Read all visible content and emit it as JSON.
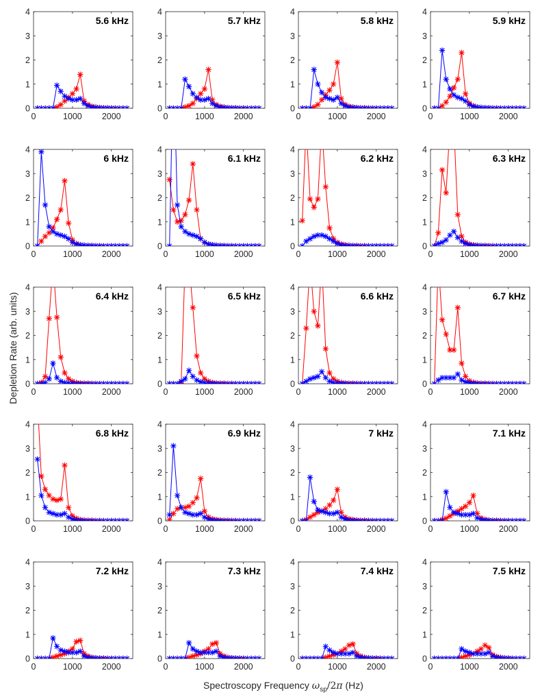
{
  "figure": {
    "ylabel": "Depletion Rate (arb. units)",
    "xlabel_prefix": "Spectroscopy Frequency ",
    "xlabel_suffix": " (Hz)",
    "x_ticks": [
      "0",
      "1000",
      "2000"
    ],
    "y_ticks": [
      "0",
      "1",
      "2",
      "3",
      "4"
    ]
  },
  "chart_data": {
    "type": "line",
    "grid": false,
    "xlim": [
      0,
      2550
    ],
    "ylim": [
      0,
      4
    ],
    "xlabel": "Spectroscopy Frequency ω_sp/2π (Hz)",
    "ylabel": "Depletion Rate (arb. units)",
    "colors": {
      "red": "#ff0000",
      "blue": "#0000ff",
      "axis": "#262626"
    },
    "marker": "asterisk",
    "x": [
      100,
      200,
      300,
      400,
      500,
      600,
      700,
      800,
      900,
      1000,
      1100,
      1200,
      1300,
      1400,
      1500,
      1600,
      1700,
      1800,
      1900,
      2000,
      2100,
      2200,
      2300,
      2400
    ],
    "panels": [
      {
        "title": "5.6 kHz",
        "red": [
          0,
          0,
          0,
          0,
          0,
          0.05,
          0.15,
          0.3,
          0.45,
          0.6,
          0.8,
          1.4,
          0.3,
          0.15,
          0.08,
          0.05,
          0.03,
          0.02,
          0.02,
          0.01,
          0.01,
          0,
          0,
          0
        ],
        "blue": [
          0,
          0,
          0,
          0,
          0,
          0.95,
          0.7,
          0.5,
          0.4,
          0.35,
          0.35,
          0.4,
          0.2,
          0.1,
          0.05,
          0.03,
          0.02,
          0.01,
          0.01,
          0,
          0,
          0,
          0,
          0
        ]
      },
      {
        "title": "5.7 kHz",
        "red": [
          0,
          0,
          0,
          0,
          0.05,
          0.1,
          0.2,
          0.4,
          0.6,
          0.8,
          1.6,
          0.35,
          0.15,
          0.08,
          0.05,
          0.03,
          0.02,
          0.02,
          0.01,
          0.01,
          0,
          0,
          0,
          0
        ],
        "blue": [
          0,
          0,
          0,
          0,
          1.2,
          0.9,
          0.6,
          0.45,
          0.35,
          0.35,
          0.4,
          0.2,
          0.1,
          0.05,
          0.03,
          0.02,
          0.01,
          0.01,
          0,
          0,
          0,
          0,
          0,
          0
        ]
      },
      {
        "title": "5.8 kHz",
        "red": [
          0,
          0,
          0,
          0.05,
          0.15,
          0.35,
          0.55,
          0.75,
          1.0,
          1.9,
          0.4,
          0.15,
          0.08,
          0.05,
          0.03,
          0.02,
          0.02,
          0.01,
          0.01,
          0,
          0,
          0,
          0,
          0
        ],
        "blue": [
          0,
          0,
          0,
          1.6,
          1.0,
          0.65,
          0.45,
          0.4,
          0.35,
          0.45,
          0.2,
          0.1,
          0.05,
          0.03,
          0.02,
          0.01,
          0.01,
          0,
          0,
          0,
          0,
          0,
          0,
          0
        ]
      },
      {
        "title": "5.9 kHz",
        "red": [
          0,
          0,
          0.1,
          0.25,
          0.5,
          0.85,
          1.2,
          2.3,
          0.6,
          0.2,
          0.1,
          0.05,
          0.03,
          0.02,
          0.02,
          0.01,
          0.01,
          0,
          0,
          0,
          0,
          0,
          0,
          0
        ],
        "blue": [
          0,
          0,
          2.4,
          1.2,
          0.8,
          0.55,
          0.45,
          0.4,
          0.3,
          0.15,
          0.08,
          0.05,
          0.03,
          0.02,
          0.01,
          0.01,
          0,
          0,
          0,
          0,
          0,
          0,
          0,
          0
        ]
      },
      {
        "title": "6 kHz",
        "red": [
          0,
          0.2,
          0.4,
          0.55,
          0.75,
          1.1,
          1.5,
          2.7,
          0.95,
          0.25,
          0.1,
          0.05,
          0.03,
          0.02,
          0.02,
          0.01,
          0.01,
          0,
          0,
          0,
          0,
          0,
          0,
          0
        ],
        "blue": [
          0,
          3.9,
          1.7,
          0.8,
          0.6,
          0.5,
          0.45,
          0.4,
          0.3,
          0.15,
          0.08,
          0.05,
          0.03,
          0.02,
          0.01,
          0.01,
          0,
          0,
          0,
          0,
          0,
          0,
          0,
          0
        ]
      },
      {
        "title": "6.1 kHz",
        "red": [
          2.75,
          1.5,
          1.0,
          1.05,
          1.3,
          1.9,
          3.4,
          1.5,
          0.3,
          0.15,
          0.08,
          0.05,
          0.03,
          0.02,
          0.02,
          0.01,
          0.01,
          0,
          0,
          0,
          0,
          0,
          0,
          0
        ],
        "blue": [
          0,
          8.0,
          1.7,
          0.8,
          0.6,
          0.5,
          0.45,
          0.4,
          0.3,
          0.15,
          0.08,
          0.05,
          0.03,
          0.02,
          0.01,
          0.01,
          0,
          0,
          0,
          0,
          0,
          0,
          0,
          0
        ]
      },
      {
        "title": "6.2 kHz",
        "red": [
          1.05,
          5.0,
          1.95,
          1.6,
          1.95,
          5.0,
          2.45,
          0.75,
          0.3,
          0.15,
          0.08,
          0.05,
          0.03,
          0.02,
          0.02,
          0.01,
          0.01,
          0,
          0,
          0,
          0,
          0,
          0,
          0
        ],
        "blue": [
          0,
          0.2,
          0.3,
          0.4,
          0.45,
          0.45,
          0.4,
          0.3,
          0.2,
          0.1,
          0.05,
          0.03,
          0.02,
          0.01,
          0,
          0,
          0,
          0,
          0,
          0,
          0,
          0,
          0,
          0
        ]
      },
      {
        "title": "6.3 kHz",
        "red": [
          0,
          0.55,
          3.15,
          2.2,
          5.0,
          5.0,
          1.3,
          0.4,
          0.15,
          0.08,
          0.05,
          0.03,
          0.02,
          0.02,
          0.01,
          0.01,
          0,
          0,
          0,
          0,
          0,
          0,
          0,
          0
        ],
        "blue": [
          0,
          0.1,
          0.15,
          0.25,
          0.45,
          0.6,
          0.35,
          0.2,
          0.1,
          0.05,
          0.03,
          0.02,
          0.01,
          0,
          0,
          0,
          0,
          0,
          0,
          0,
          0,
          0,
          0,
          0
        ]
      },
      {
        "title": "6.4 kHz",
        "red": [
          0,
          0.05,
          0.3,
          2.7,
          5.0,
          2.75,
          1.1,
          0.45,
          0.2,
          0.1,
          0.05,
          0.03,
          0.02,
          0.02,
          0.01,
          0.01,
          0,
          0,
          0,
          0,
          0,
          0,
          0,
          0
        ],
        "blue": [
          0,
          0,
          0.05,
          0.2,
          0.85,
          0.25,
          0.1,
          0.05,
          0.03,
          0.02,
          0.01,
          0,
          0,
          0,
          0,
          0,
          0,
          0,
          0,
          0,
          0,
          0,
          0,
          0
        ]
      },
      {
        "title": "6.5 kHz",
        "red": [
          0,
          0,
          0,
          0.05,
          5.0,
          5.0,
          3.15,
          1.15,
          0.45,
          0.2,
          0.1,
          0.05,
          0.03,
          0.02,
          0.02,
          0.01,
          0.01,
          0,
          0,
          0,
          0,
          0,
          0,
          0
        ],
        "blue": [
          0,
          0,
          0,
          0.1,
          0.2,
          0.55,
          0.3,
          0.15,
          0.08,
          0.05,
          0.03,
          0.02,
          0.01,
          0,
          0,
          0,
          0,
          0,
          0,
          0,
          0,
          0,
          0,
          0
        ]
      },
      {
        "title": "6.6 kHz",
        "red": [
          0,
          2.3,
          5.0,
          3.0,
          2.4,
          5.0,
          1.45,
          0.45,
          0.2,
          0.1,
          0.05,
          0.03,
          0.02,
          0.02,
          0.01,
          0.01,
          0,
          0,
          0,
          0,
          0,
          0,
          0,
          0
        ],
        "blue": [
          0,
          0.1,
          0.2,
          0.25,
          0.3,
          0.5,
          0.25,
          0.1,
          0.05,
          0.03,
          0.02,
          0.01,
          0,
          0,
          0,
          0,
          0,
          0,
          0,
          0,
          0,
          0,
          0,
          0
        ]
      },
      {
        "title": "6.7 kHz",
        "red": [
          0,
          5.0,
          2.65,
          2.05,
          1.4,
          1.4,
          3.15,
          0.85,
          0.3,
          0.12,
          0.06,
          0.03,
          0.02,
          0.02,
          0.01,
          0.01,
          0,
          0,
          0,
          0,
          0,
          0,
          0,
          0
        ],
        "blue": [
          0,
          0.15,
          0.25,
          0.25,
          0.25,
          0.25,
          0.4,
          0.15,
          0.08,
          0.04,
          0.02,
          0.01,
          0,
          0,
          0,
          0,
          0,
          0,
          0,
          0,
          0,
          0,
          0,
          0
        ]
      },
      {
        "title": "6.8 kHz",
        "red": [
          5.0,
          1.85,
          1.3,
          1.05,
          0.9,
          0.85,
          0.9,
          2.3,
          0.55,
          0.2,
          0.1,
          0.05,
          0.03,
          0.02,
          0.02,
          0.01,
          0.01,
          0,
          0,
          0,
          0,
          0,
          0,
          0
        ],
        "blue": [
          2.55,
          1.05,
          0.55,
          0.35,
          0.3,
          0.25,
          0.25,
          0.3,
          0.15,
          0.07,
          0.03,
          0.02,
          0.01,
          0,
          0,
          0,
          0,
          0,
          0,
          0,
          0,
          0,
          0,
          0
        ]
      },
      {
        "title": "6.9 kHz",
        "red": [
          0.05,
          0.3,
          0.5,
          0.55,
          0.55,
          0.6,
          0.75,
          0.95,
          1.75,
          0.4,
          0.15,
          0.08,
          0.05,
          0.03,
          0.02,
          0.02,
          0.01,
          0.01,
          0,
          0,
          0,
          0,
          0,
          0
        ],
        "blue": [
          0.25,
          3.1,
          1.05,
          0.55,
          0.35,
          0.3,
          0.25,
          0.25,
          0.3,
          0.15,
          0.07,
          0.03,
          0.02,
          0.01,
          0,
          0,
          0,
          0,
          0,
          0,
          0,
          0,
          0,
          0
        ]
      },
      {
        "title": "7 kHz",
        "red": [
          0,
          0.05,
          0.15,
          0.25,
          0.35,
          0.4,
          0.5,
          0.65,
          0.85,
          1.3,
          0.35,
          0.15,
          0.08,
          0.05,
          0.03,
          0.02,
          0.02,
          0.01,
          0.01,
          0,
          0,
          0,
          0,
          0
        ],
        "blue": [
          0,
          0,
          1.8,
          0.8,
          0.45,
          0.4,
          0.35,
          0.3,
          0.3,
          0.35,
          0.15,
          0.07,
          0.03,
          0.02,
          0.01,
          0,
          0,
          0,
          0,
          0,
          0,
          0,
          0,
          0
        ]
      },
      {
        "title": "7.1 kHz",
        "red": [
          0,
          0,
          0.05,
          0.1,
          0.2,
          0.3,
          0.4,
          0.5,
          0.6,
          0.75,
          1.05,
          0.3,
          0.12,
          0.06,
          0.03,
          0.02,
          0.02,
          0.01,
          0.01,
          0,
          0,
          0,
          0,
          0
        ],
        "blue": [
          0,
          0,
          0,
          1.2,
          0.55,
          0.35,
          0.3,
          0.25,
          0.25,
          0.25,
          0.3,
          0.12,
          0.06,
          0.03,
          0.02,
          0.01,
          0,
          0,
          0,
          0,
          0,
          0,
          0,
          0
        ]
      },
      {
        "title": "7.2 kHz",
        "red": [
          0,
          0,
          0,
          0,
          0.05,
          0.1,
          0.15,
          0.2,
          0.3,
          0.4,
          0.7,
          0.75,
          0.2,
          0.1,
          0.05,
          0.03,
          0.02,
          0.02,
          0.01,
          0,
          0,
          0,
          0,
          0
        ],
        "blue": [
          0,
          0,
          0,
          0,
          0.85,
          0.5,
          0.35,
          0.3,
          0.25,
          0.25,
          0.25,
          0.3,
          0.1,
          0.05,
          0.03,
          0.02,
          0.01,
          0,
          0,
          0,
          0,
          0,
          0,
          0
        ]
      },
      {
        "title": "7.3 kHz",
        "red": [
          0,
          0,
          0,
          0,
          0,
          0.05,
          0.1,
          0.15,
          0.2,
          0.3,
          0.4,
          0.6,
          0.65,
          0.2,
          0.1,
          0.05,
          0.03,
          0.02,
          0.02,
          0.01,
          0,
          0,
          0,
          0
        ],
        "blue": [
          0,
          0,
          0,
          0,
          0,
          0.65,
          0.4,
          0.3,
          0.25,
          0.25,
          0.25,
          0.25,
          0.3,
          0.1,
          0.05,
          0.03,
          0.02,
          0.01,
          0,
          0,
          0,
          0,
          0,
          0
        ]
      },
      {
        "title": "7.4 kHz",
        "red": [
          0,
          0,
          0,
          0,
          0,
          0,
          0.05,
          0.1,
          0.15,
          0.2,
          0.3,
          0.4,
          0.55,
          0.6,
          0.2,
          0.1,
          0.05,
          0.03,
          0.02,
          0.02,
          0.01,
          0,
          0,
          0
        ],
        "blue": [
          0,
          0,
          0,
          0,
          0,
          0,
          0.5,
          0.35,
          0.25,
          0.2,
          0.2,
          0.2,
          0.2,
          0.25,
          0.1,
          0.05,
          0.03,
          0.02,
          0.01,
          0,
          0,
          0,
          0,
          0
        ]
      },
      {
        "title": "7.5 kHz",
        "red": [
          0,
          0,
          0,
          0,
          0,
          0,
          0,
          0.05,
          0.1,
          0.15,
          0.2,
          0.3,
          0.4,
          0.55,
          0.45,
          0.15,
          0.08,
          0.05,
          0.03,
          0.02,
          0.01,
          0,
          0,
          0
        ],
        "blue": [
          0,
          0,
          0,
          0,
          0,
          0,
          0,
          0.4,
          0.3,
          0.25,
          0.2,
          0.2,
          0.2,
          0.2,
          0.25,
          0.1,
          0.05,
          0.03,
          0.02,
          0.01,
          0,
          0,
          0,
          0
        ]
      }
    ]
  }
}
